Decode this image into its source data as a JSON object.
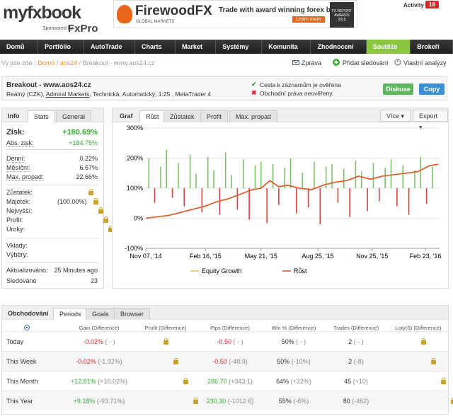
{
  "header": {
    "logo": "myfxbook",
    "sponsor": "Sponsored by",
    "sponsor_brand": "FxPro",
    "banner": {
      "brand": "FirewoodFX",
      "sub": "GLOBAL MARKETS",
      "tagline": "Trade with award winning forex broker",
      "cta": "Learn more",
      "award": "FX REPORT AWARDS 2015"
    },
    "activity": "Activity",
    "activity_count": "18"
  },
  "nav": {
    "items": [
      "Domů ▼",
      "Portfólio ▼",
      "AutoTrade ▼",
      "Charts ▼",
      "Market ▼",
      "Systémy ▼",
      "Komunita ▼",
      "Zhodnocení ▼",
      "Soutěže ▼",
      "Brokeři ▼"
    ],
    "active": 8
  },
  "breadcrumb": {
    "label": "Vy jste zde :",
    "items": [
      "Domů",
      "aos24",
      "Breakout - www.aos24.cz"
    ]
  },
  "actions": [
    "Zpráva",
    "Přidat sledování",
    "Vlastní analýzy"
  ],
  "system": {
    "title": "Breakout - www.aos24.cz",
    "details_pre": "Reálný (CZK),",
    "broker": "Admiral Markets",
    "details_post": ", Technická, Automatický, 1:25 , MetaTrader 4",
    "verified": "Cesta k záznamům je ověřena",
    "unverified": "Obchodní práva neověřeny.",
    "buttons": [
      "Diskuse",
      "Copy"
    ]
  },
  "stats_panel": {
    "tabs": [
      "Info",
      "Stats",
      "General"
    ],
    "gain": {
      "label": "Zisk:",
      "value": "+180.69%"
    },
    "abs_gain": {
      "label": "Abs. zisk:",
      "value": "+184.75%"
    },
    "rows": [
      {
        "label": "Denní:",
        "value": "0.22%"
      },
      {
        "label": "Měsíční:",
        "value": "6.67%"
      },
      {
        "label": "Max. propad:",
        "value": "22.66%"
      }
    ],
    "locked": [
      {
        "label": "Zůstatek:"
      },
      {
        "label": "Majetek:",
        "note": "(100.00%)"
      },
      {
        "label": "Nejvyšší:"
      },
      {
        "label": "Profit:"
      },
      {
        "label": "Úroky:"
      }
    ],
    "locked2": [
      {
        "label": "Vklady:"
      },
      {
        "label": "Výběry:"
      }
    ],
    "info": [
      {
        "label": "Aktualizováno:",
        "value": "25 Minutes ago"
      },
      {
        "label": "Sledováno",
        "value": "23"
      }
    ]
  },
  "chart_panel": {
    "tabs": [
      "Graf",
      "Růst",
      "Zůstatek",
      "Profit",
      "Max. propad"
    ],
    "dropdowns": [
      "Více",
      "Export"
    ]
  },
  "chart_data": {
    "type": "line",
    "x": [
      0,
      20,
      40,
      60,
      80,
      100,
      120,
      140,
      160,
      180,
      195,
      210,
      225,
      240,
      260,
      280,
      300,
      320,
      340,
      360,
      380,
      400,
      420,
      440,
      460,
      480,
      495
    ],
    "series": [
      {
        "name": "Equity Growth",
        "color": "#f0c040",
        "values": [
          0,
          5,
          10,
          20,
          30,
          40,
          55,
          65,
          80,
          95,
          100,
          125,
          105,
          110,
          100,
          95,
          110,
          120,
          125,
          140,
          130,
          140,
          145,
          150,
          155,
          175,
          180
        ]
      },
      {
        "name": "Růst",
        "color": "#e0532b",
        "values": [
          0,
          5,
          10,
          20,
          30,
          40,
          55,
          65,
          80,
          95,
          100,
          125,
          105,
          110,
          100,
          95,
          110,
          120,
          125,
          140,
          130,
          140,
          145,
          150,
          155,
          175,
          180
        ]
      }
    ],
    "bars": {
      "axis": "y2",
      "positive_color": "#7cc36a",
      "negative_color": "#d9413a",
      "x": [
        5,
        15,
        25,
        35,
        45,
        55,
        65,
        75,
        85,
        95,
        105,
        115,
        125,
        135,
        145,
        155,
        165,
        175,
        185,
        195,
        205,
        215,
        225,
        235,
        245,
        255,
        265,
        275,
        285,
        295,
        305,
        315,
        325,
        335,
        345,
        355,
        365,
        375,
        385,
        395,
        405,
        415,
        425,
        435,
        445,
        455,
        465,
        475,
        485
      ],
      "values": [
        2.5,
        -1.2,
        1.8,
        3.2,
        -0.8,
        2.1,
        -1.5,
        2.8,
        1.2,
        -2.0,
        2.6,
        1.5,
        -2.2,
        3.0,
        1.1,
        -1.8,
        2.4,
        -2.6,
        1.9,
        2.2,
        -2.9,
        2.0,
        -1.4,
        1.7,
        2.5,
        -2.1,
        1.3,
        -1.6,
        2.2,
        -3.0,
        1.8,
        2.0,
        -1.2,
        1.6,
        -2.4,
        2.3,
        1.4,
        -1.9,
        2.1,
        -1.1,
        1.7,
        2.4,
        -1.5,
        1.9,
        -2.2,
        1.5,
        2.6,
        -1.3,
        1.8
      ]
    },
    "xlim": [
      0,
      497
    ],
    "xticks": [
      {
        "value": 0,
        "label": "Nov 07, '14"
      },
      {
        "value": 101,
        "label": "Feb 16, '15"
      },
      {
        "value": 195,
        "label": "May 21, '15"
      },
      {
        "value": 291,
        "label": "Aug 25, '15"
      },
      {
        "value": 383,
        "label": "Nov 25, '15"
      },
      {
        "value": 473,
        "label": "Feb 23, '16"
      }
    ],
    "ylim": [
      -100,
      300
    ],
    "yticks": [
      {
        "value": -100,
        "label": "-100%"
      },
      {
        "value": 0,
        "label": "0%"
      },
      {
        "value": 100,
        "label": "100%"
      },
      {
        "value": 200,
        "label": "200%"
      },
      {
        "value": 300,
        "label": "300%"
      }
    ],
    "y2lim": [
      -5,
      5
    ],
    "grid": true
  },
  "trading": {
    "tabs": [
      "Obchodování",
      "Periods",
      "Goals",
      "Browser"
    ],
    "columns": [
      "Gain (Difference)",
      "Profit (Difference)",
      "Pips (Difference)",
      "Win % (Difference)",
      "Trades (Difference)",
      "Loty(ß) (Difference)"
    ],
    "rows": [
      {
        "period": "Today",
        "gain": "-0.02%",
        "gain_diff": "( - )",
        "pips": "-0.50",
        "pips_diff": "( - )",
        "win": "50%",
        "win_diff": "( - )",
        "trades": "2",
        "trades_diff": "( - )"
      },
      {
        "period": "This Week",
        "gain": "-0.02%",
        "gain_diff": "(-1.92%)",
        "pips": "-0.50",
        "pips_diff": "(-48.9)",
        "win": "50%",
        "win_diff": "(-10%)",
        "trades": "2",
        "trades_diff": "(-8)"
      },
      {
        "period": "This Month",
        "gain": "+12.81%",
        "gain_diff": "(+16.02%)",
        "pips": "286.70",
        "pips_diff": "(+343.1)",
        "win": "64%",
        "win_diff": "(+22%)",
        "trades": "45",
        "trades_diff": "(+10)"
      },
      {
        "period": "This Year",
        "gain": "+9.18%",
        "gain_diff": "(-93.71%)",
        "pips": "230.30",
        "pips_diff": "(-1012.6)",
        "win": "55%",
        "win_diff": "(-6%)",
        "trades": "80",
        "trades_diff": "(-462)"
      }
    ]
  }
}
